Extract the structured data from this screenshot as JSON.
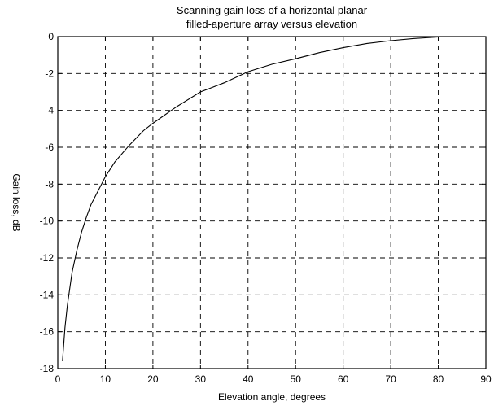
{
  "chart_data": {
    "type": "line",
    "title": [
      "Scanning gain loss of a horizontal planar",
      "filled-aperture array versus elevation"
    ],
    "xlabel": "Elevation angle, degrees",
    "ylabel": "Gain loss, dB",
    "xlim": [
      0,
      90
    ],
    "ylim": [
      -18,
      0
    ],
    "xticks": [
      0,
      10,
      20,
      30,
      40,
      50,
      60,
      70,
      80,
      90
    ],
    "yticks": [
      0,
      -2,
      -4,
      -6,
      -8,
      -10,
      -12,
      -14,
      -16,
      -18
    ],
    "grid": true,
    "series": [
      {
        "x": [
          1,
          1.5,
          2,
          3,
          4,
          5,
          6,
          7,
          8,
          10,
          12,
          15,
          18,
          20,
          25,
          30,
          35,
          40,
          45,
          50,
          55,
          60,
          65,
          70,
          75,
          80,
          82
        ],
        "values": [
          -17.6,
          -15.8,
          -14.6,
          -12.8,
          -11.6,
          -10.6,
          -9.8,
          -9.1,
          -8.6,
          -7.6,
          -6.8,
          -5.9,
          -5.1,
          -4.7,
          -3.8,
          -3.0,
          -2.5,
          -1.9,
          -1.5,
          -1.2,
          -0.87,
          -0.6,
          -0.37,
          -0.22,
          -0.1,
          -0.02,
          0
        ]
      }
    ]
  }
}
